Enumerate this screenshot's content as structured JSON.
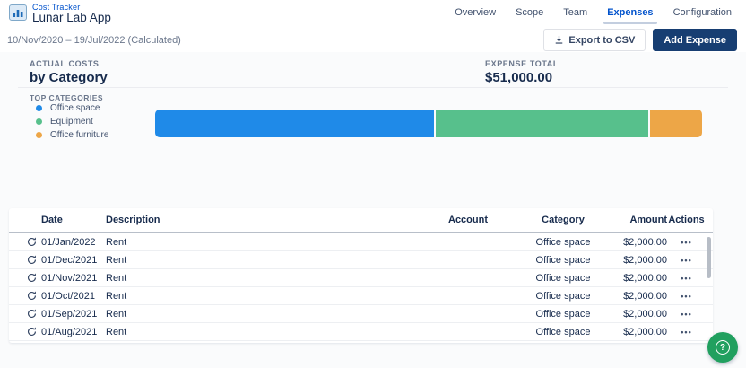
{
  "app": {
    "project_label": "Cost Tracker",
    "project_name": "Lunar Lab App"
  },
  "nav": {
    "tabs": [
      {
        "label": "Overview",
        "active": false
      },
      {
        "label": "Scope",
        "active": false
      },
      {
        "label": "Team",
        "active": false
      },
      {
        "label": "Expenses",
        "active": true
      },
      {
        "label": "Configuration",
        "active": false
      }
    ]
  },
  "toolbar": {
    "date_range": "10/Nov/2020 – 19/Jul/2022 (Calculated)",
    "export_label": "Export to CSV",
    "add_label": "Add Expense"
  },
  "summary": {
    "left_eyebrow": "ACTUAL COSTS",
    "left_title": "by Category",
    "right_eyebrow": "EXPENSE TOTAL",
    "right_value": "$51,000.00"
  },
  "legend": {
    "title": "TOP CATEGORIES"
  },
  "chart_data": {
    "type": "bar",
    "variant": "horizontal-stacked",
    "title": "Actual Costs by Category",
    "total": 51000,
    "total_display": "$51,000.00",
    "legend_position": "left",
    "segments": [
      {
        "label": "Office space",
        "value": 26000,
        "color": "#1F8AE8"
      },
      {
        "label": "Equipment",
        "value": 20000,
        "color": "#57C08C"
      },
      {
        "label": "Office furniture",
        "value": 5000,
        "color": "#EDA647"
      }
    ]
  },
  "table": {
    "headers": [
      "Date",
      "Description",
      "Account",
      "Category",
      "Amount",
      "Actions"
    ],
    "actions_glyph": "•••",
    "rows": [
      {
        "recurring": true,
        "date": "01/Jan/2022",
        "description": "Rent",
        "account": "",
        "category": "Office space",
        "amount": "$2,000.00"
      },
      {
        "recurring": true,
        "date": "01/Dec/2021",
        "description": "Rent",
        "account": "",
        "category": "Office space",
        "amount": "$2,000.00"
      },
      {
        "recurring": true,
        "date": "01/Nov/2021",
        "description": "Rent",
        "account": "",
        "category": "Office space",
        "amount": "$2,000.00"
      },
      {
        "recurring": true,
        "date": "01/Oct/2021",
        "description": "Rent",
        "account": "",
        "category": "Office space",
        "amount": "$2,000.00"
      },
      {
        "recurring": true,
        "date": "01/Sep/2021",
        "description": "Rent",
        "account": "",
        "category": "Office space",
        "amount": "$2,000.00"
      },
      {
        "recurring": true,
        "date": "01/Aug/2021",
        "description": "Rent",
        "account": "",
        "category": "Office space",
        "amount": "$2,000.00"
      }
    ]
  },
  "help": {
    "glyph": "?"
  }
}
